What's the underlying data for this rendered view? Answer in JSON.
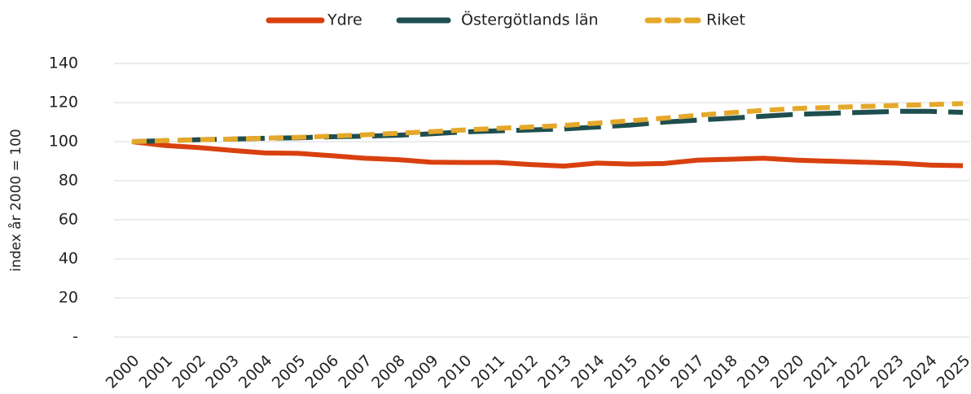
{
  "chart_data": {
    "type": "line",
    "y_label": "index år 2000 = 100",
    "categories": [
      "2000",
      "2001",
      "2002",
      "2003",
      "2004",
      "2005",
      "2006",
      "2007",
      "2008",
      "2009",
      "2010",
      "2011",
      "2012",
      "2013",
      "2014",
      "2015",
      "2016",
      "2017",
      "2018",
      "2019",
      "2020",
      "2021",
      "2022",
      "2023",
      "2024",
      "2025"
    ],
    "series": [
      {
        "name": "Ydre",
        "color": "#d9400f",
        "style": "solid",
        "values": [
          100,
          98,
          97,
          95.5,
          94.2,
          94,
          92.8,
          91.5,
          90.8,
          89.5,
          89.3,
          89.3,
          88.3,
          87.5,
          89,
          88.5,
          88.8,
          90.5,
          91,
          91.5,
          90.5,
          90,
          89.5,
          89,
          88,
          87.7
        ]
      },
      {
        "name": "Östergötlands län",
        "color": "#1f4e4f",
        "style": "long-dash",
        "values": [
          100,
          100.5,
          101,
          101.3,
          101.7,
          102,
          102.5,
          102.8,
          103.3,
          104,
          105,
          105.5,
          106,
          106.5,
          107.5,
          108.5,
          110,
          111,
          112,
          113,
          114,
          114.5,
          115,
          115.5,
          115.5,
          115
        ]
      },
      {
        "name": "Riket",
        "color": "#e5a82a",
        "style": "dash",
        "values": [
          100,
          100.5,
          101,
          101.3,
          101.8,
          102.2,
          102.8,
          103.5,
          104.3,
          105.1,
          106,
          106.8,
          107.5,
          108.3,
          109.5,
          110.7,
          112,
          113.5,
          114.8,
          116,
          117,
          117.5,
          118,
          118.5,
          119,
          119.5
        ]
      }
    ],
    "ylim": [
      0,
      140
    ],
    "yticks": [
      {
        "value": 0,
        "label": "-"
      },
      20,
      40,
      60,
      80,
      100,
      120,
      140
    ],
    "grid": true,
    "legend": "top"
  }
}
